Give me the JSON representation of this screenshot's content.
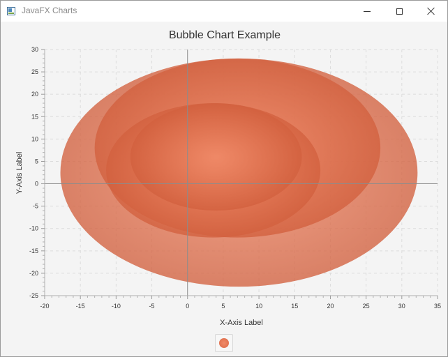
{
  "window": {
    "title": "JavaFX Charts",
    "icon": "java-app-icon",
    "controls": [
      "minimize-icon",
      "maximize-icon",
      "close-icon"
    ]
  },
  "chart_data": {
    "type": "bubble",
    "title": "Bubble Chart Example",
    "xlabel": "X-Axis Label",
    "ylabel": "Y-Axis Label",
    "xlim": [
      -20,
      35
    ],
    "ylim": [
      -25,
      30
    ],
    "xticks": [
      -20,
      -15,
      -10,
      -5,
      0,
      5,
      10,
      15,
      20,
      25,
      30,
      35
    ],
    "yticks": [
      -25,
      -20,
      -15,
      -10,
      -5,
      0,
      5,
      10,
      15,
      20,
      25,
      30
    ],
    "grid": true,
    "legend": "bottom-center",
    "color": "#e2714f",
    "series": [
      {
        "name": "",
        "points": [
          {
            "x": 7.2,
            "y": 2.5,
            "r_x": 25,
            "r_y": 25.5
          },
          {
            "x": 7,
            "y": 8,
            "r_x": 20,
            "r_y": 20
          },
          {
            "x": 3.6,
            "y": 3,
            "r_x": 15,
            "r_y": 15
          },
          {
            "x": 4,
            "y": 6,
            "r_x": 12,
            "r_y": 12
          }
        ]
      }
    ]
  }
}
